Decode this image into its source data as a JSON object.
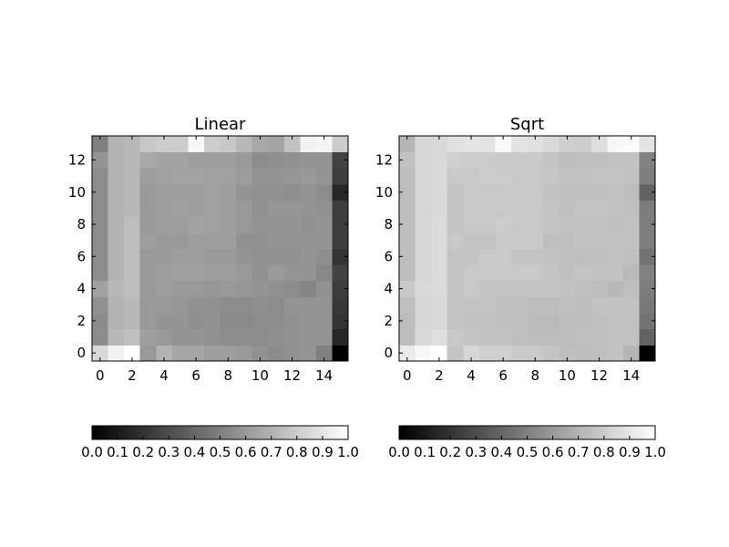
{
  "chart_data": [
    {
      "type": "heatmap",
      "title": "Linear",
      "colormap": "gray",
      "xlim": [
        -0.5,
        15.5
      ],
      "ylim": [
        -0.5,
        13.5
      ],
      "x_ticks": [
        0,
        2,
        4,
        6,
        8,
        10,
        12,
        14
      ],
      "y_ticks": [
        0,
        2,
        4,
        6,
        8,
        10,
        12
      ],
      "colorbar": {
        "orientation": "horizontal",
        "range": [
          0.0,
          1.0
        ],
        "tick_labels": [
          "0.0",
          "0.1",
          "0.2",
          "0.3",
          "0.4",
          "0.5",
          "0.6",
          "0.7",
          "0.8",
          "0.9",
          "1.0"
        ]
      },
      "values": [
        [
          0.85,
          0.95,
          1.0,
          0.6,
          0.7,
          0.65,
          0.65,
          0.62,
          0.62,
          0.6,
          0.57,
          0.55,
          0.57,
          0.58,
          0.5,
          0.0
        ],
        [
          0.55,
          0.72,
          0.75,
          0.62,
          0.6,
          0.58,
          0.58,
          0.57,
          0.55,
          0.55,
          0.55,
          0.56,
          0.57,
          0.58,
          0.58,
          0.15
        ],
        [
          0.55,
          0.7,
          0.72,
          0.6,
          0.58,
          0.58,
          0.56,
          0.57,
          0.54,
          0.54,
          0.55,
          0.55,
          0.57,
          0.58,
          0.58,
          0.2
        ],
        [
          0.57,
          0.7,
          0.72,
          0.6,
          0.6,
          0.59,
          0.57,
          0.57,
          0.55,
          0.55,
          0.56,
          0.55,
          0.58,
          0.58,
          0.58,
          0.22
        ],
        [
          0.63,
          0.72,
          0.74,
          0.6,
          0.62,
          0.6,
          0.6,
          0.59,
          0.6,
          0.59,
          0.58,
          0.57,
          0.55,
          0.52,
          0.57,
          0.24
        ],
        [
          0.55,
          0.7,
          0.74,
          0.6,
          0.62,
          0.63,
          0.63,
          0.62,
          0.62,
          0.6,
          0.57,
          0.6,
          0.58,
          0.58,
          0.53,
          0.26
        ],
        [
          0.55,
          0.7,
          0.74,
          0.6,
          0.6,
          0.62,
          0.62,
          0.6,
          0.6,
          0.58,
          0.57,
          0.57,
          0.57,
          0.58,
          0.56,
          0.2
        ],
        [
          0.55,
          0.7,
          0.74,
          0.62,
          0.6,
          0.6,
          0.62,
          0.62,
          0.62,
          0.57,
          0.57,
          0.58,
          0.58,
          0.58,
          0.58,
          0.24
        ],
        [
          0.55,
          0.7,
          0.74,
          0.6,
          0.62,
          0.62,
          0.64,
          0.63,
          0.62,
          0.6,
          0.58,
          0.58,
          0.58,
          0.57,
          0.58,
          0.24
        ],
        [
          0.55,
          0.7,
          0.72,
          0.6,
          0.62,
          0.63,
          0.62,
          0.63,
          0.62,
          0.6,
          0.57,
          0.59,
          0.59,
          0.58,
          0.57,
          0.24
        ],
        [
          0.55,
          0.7,
          0.72,
          0.6,
          0.62,
          0.62,
          0.62,
          0.63,
          0.62,
          0.58,
          0.57,
          0.57,
          0.56,
          0.58,
          0.55,
          0.15
        ],
        [
          0.55,
          0.7,
          0.72,
          0.62,
          0.63,
          0.64,
          0.64,
          0.63,
          0.63,
          0.61,
          0.58,
          0.58,
          0.59,
          0.6,
          0.58,
          0.24
        ],
        [
          0.58,
          0.7,
          0.72,
          0.66,
          0.64,
          0.64,
          0.62,
          0.62,
          0.62,
          0.6,
          0.55,
          0.56,
          0.57,
          0.58,
          0.58,
          0.26
        ],
        [
          0.5,
          0.7,
          0.72,
          0.78,
          0.8,
          0.8,
          0.97,
          0.8,
          0.78,
          0.72,
          0.66,
          0.64,
          0.76,
          0.95,
          0.96,
          0.8
        ]
      ]
    },
    {
      "type": "heatmap",
      "title": "Sqrt",
      "colormap": "gray",
      "xlim": [
        -0.5,
        15.5
      ],
      "ylim": [
        -0.5,
        13.5
      ],
      "x_ticks": [
        0,
        2,
        4,
        6,
        8,
        10,
        12,
        14
      ],
      "y_ticks": [
        0,
        2,
        4,
        6,
        8,
        10,
        12
      ],
      "colorbar": {
        "orientation": "horizontal",
        "range": [
          0.0,
          1.0
        ],
        "tick_labels": [
          "0.0",
          "0.1",
          "0.2",
          "0.3",
          "0.4",
          "0.5",
          "0.6",
          "0.7",
          "0.8",
          "0.9",
          "1.0"
        ]
      },
      "values": [
        [
          0.92,
          0.97,
          1.0,
          0.77,
          0.84,
          0.81,
          0.81,
          0.79,
          0.79,
          0.77,
          0.75,
          0.74,
          0.75,
          0.76,
          0.71,
          0.0
        ],
        [
          0.74,
          0.85,
          0.87,
          0.79,
          0.77,
          0.76,
          0.76,
          0.75,
          0.74,
          0.74,
          0.74,
          0.75,
          0.75,
          0.76,
          0.76,
          0.39
        ],
        [
          0.74,
          0.84,
          0.85,
          0.77,
          0.76,
          0.76,
          0.75,
          0.75,
          0.73,
          0.73,
          0.74,
          0.74,
          0.75,
          0.76,
          0.76,
          0.45
        ],
        [
          0.75,
          0.84,
          0.85,
          0.77,
          0.77,
          0.77,
          0.75,
          0.75,
          0.74,
          0.74,
          0.75,
          0.74,
          0.76,
          0.76,
          0.76,
          0.47
        ],
        [
          0.79,
          0.85,
          0.86,
          0.77,
          0.79,
          0.77,
          0.77,
          0.77,
          0.77,
          0.77,
          0.76,
          0.75,
          0.74,
          0.72,
          0.75,
          0.49
        ],
        [
          0.74,
          0.84,
          0.86,
          0.77,
          0.79,
          0.79,
          0.79,
          0.79,
          0.79,
          0.77,
          0.75,
          0.77,
          0.76,
          0.76,
          0.73,
          0.51
        ],
        [
          0.74,
          0.84,
          0.86,
          0.77,
          0.77,
          0.79,
          0.79,
          0.77,
          0.77,
          0.76,
          0.75,
          0.75,
          0.75,
          0.76,
          0.75,
          0.45
        ],
        [
          0.74,
          0.84,
          0.86,
          0.79,
          0.77,
          0.77,
          0.79,
          0.79,
          0.79,
          0.75,
          0.75,
          0.76,
          0.76,
          0.76,
          0.76,
          0.49
        ],
        [
          0.74,
          0.84,
          0.86,
          0.77,
          0.79,
          0.79,
          0.8,
          0.79,
          0.79,
          0.77,
          0.76,
          0.76,
          0.76,
          0.75,
          0.76,
          0.49
        ],
        [
          0.74,
          0.84,
          0.85,
          0.77,
          0.79,
          0.79,
          0.79,
          0.79,
          0.79,
          0.77,
          0.75,
          0.77,
          0.77,
          0.76,
          0.75,
          0.49
        ],
        [
          0.74,
          0.84,
          0.85,
          0.77,
          0.79,
          0.79,
          0.79,
          0.79,
          0.79,
          0.76,
          0.75,
          0.75,
          0.75,
          0.76,
          0.74,
          0.39
        ],
        [
          0.74,
          0.84,
          0.85,
          0.79,
          0.79,
          0.8,
          0.8,
          0.79,
          0.79,
          0.78,
          0.76,
          0.76,
          0.77,
          0.77,
          0.76,
          0.49
        ],
        [
          0.76,
          0.84,
          0.85,
          0.81,
          0.8,
          0.8,
          0.79,
          0.79,
          0.79,
          0.77,
          0.74,
          0.75,
          0.75,
          0.76,
          0.76,
          0.51
        ],
        [
          0.71,
          0.84,
          0.85,
          0.88,
          0.89,
          0.89,
          0.98,
          0.89,
          0.88,
          0.85,
          0.81,
          0.8,
          0.87,
          0.97,
          0.98,
          0.89
        ]
      ]
    }
  ]
}
